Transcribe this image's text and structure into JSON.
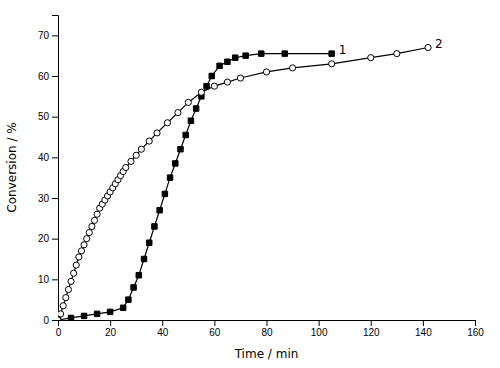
{
  "chart_data": {
    "type": "line",
    "x_label": "Time / min",
    "y_label": "Conversion / %",
    "xlim": [
      0,
      160
    ],
    "ylim": [
      0,
      75
    ],
    "xticks": [
      0,
      20,
      40,
      60,
      80,
      100,
      120,
      140,
      160
    ],
    "yticks": [
      0,
      10,
      20,
      30,
      40,
      50,
      60,
      70
    ],
    "series": [
      {
        "name": "1",
        "color": "#000000",
        "marker": "square",
        "x": [
          0,
          5,
          10,
          15,
          20,
          25,
          27,
          29,
          31,
          33,
          35,
          37,
          39,
          41,
          43,
          45,
          47,
          49,
          51,
          53,
          55,
          57,
          59,
          62,
          65,
          68,
          72,
          78,
          87,
          105
        ],
        "values": [
          0,
          0.5,
          1.0,
          1.5,
          2.0,
          3.0,
          5.0,
          8.0,
          11.0,
          15.0,
          19.0,
          23.0,
          27.0,
          31.0,
          35.0,
          38.5,
          42.0,
          45.5,
          49.0,
          52.0,
          55.0,
          57.5,
          60.0,
          62.5,
          63.5,
          64.5,
          65.0,
          65.5,
          65.5,
          65.5
        ]
      },
      {
        "name": "2",
        "color": "#000000",
        "marker": "circle-open",
        "x": [
          0,
          1,
          2,
          3,
          4,
          5,
          6,
          7,
          8,
          9,
          10,
          11,
          12,
          13,
          14,
          15,
          16,
          17,
          18,
          19,
          20,
          21,
          22,
          23,
          24,
          25,
          26,
          28,
          30,
          32,
          35,
          38,
          42,
          46,
          50,
          55,
          60,
          65,
          70,
          80,
          90,
          105,
          120,
          130,
          142
        ],
        "values": [
          0,
          1.5,
          3.5,
          5.5,
          7.5,
          9.5,
          11.5,
          13.5,
          15.5,
          17.0,
          18.5,
          20.0,
          21.5,
          23.0,
          24.5,
          26.0,
          27.5,
          28.5,
          29.5,
          30.5,
          31.5,
          32.5,
          33.5,
          34.5,
          35.5,
          36.5,
          37.5,
          39.0,
          40.5,
          42.0,
          44.0,
          46.0,
          48.5,
          51.0,
          53.5,
          56.0,
          57.5,
          58.5,
          59.5,
          61.0,
          62.0,
          63.0,
          64.5,
          65.5,
          67.0
        ]
      }
    ]
  }
}
